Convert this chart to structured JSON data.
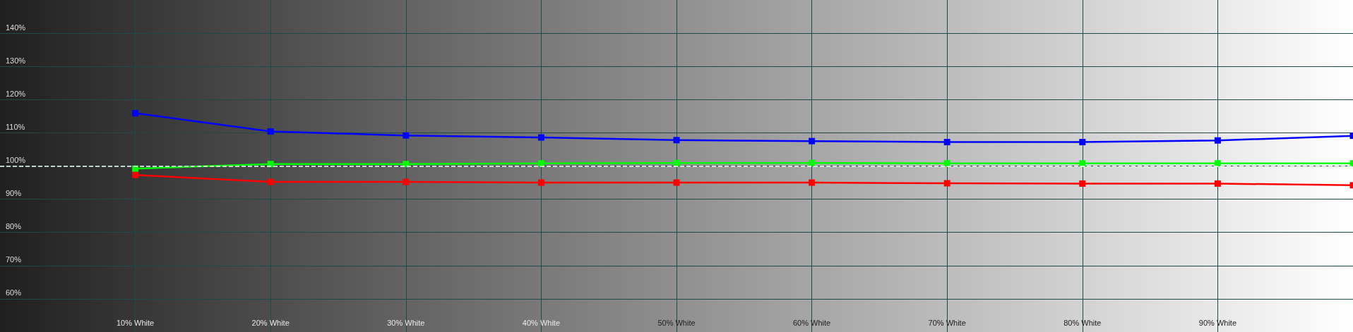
{
  "chart_data": {
    "type": "line",
    "x": [
      10,
      20,
      30,
      40,
      50,
      60,
      70,
      80,
      90,
      100
    ],
    "series": [
      {
        "color": "#0000ff",
        "values": [
          115.9,
          110.4,
          109.2,
          108.6,
          107.8,
          107.5,
          107.2,
          107.2,
          107.7,
          109.1
        ]
      },
      {
        "color": "#00ff00",
        "values": [
          99.2,
          100.6,
          100.6,
          100.8,
          100.9,
          100.9,
          100.8,
          100.8,
          100.8,
          100.8
        ]
      },
      {
        "color": "#ff0000",
        "values": [
          97.3,
          95.2,
          95.2,
          95.0,
          95.0,
          95.0,
          94.8,
          94.7,
          94.7,
          94.2
        ]
      }
    ],
    "xlim": [
      0,
      100
    ],
    "xticks": [
      {
        "value": 10,
        "label": "10% White"
      },
      {
        "value": 20,
        "label": "20% White"
      },
      {
        "value": 30,
        "label": "30% White"
      },
      {
        "value": 40,
        "label": "40% White"
      },
      {
        "value": 50,
        "label": "50% White"
      },
      {
        "value": 60,
        "label": "60% White"
      },
      {
        "value": 70,
        "label": "70% White"
      },
      {
        "value": 80,
        "label": "80% White"
      },
      {
        "value": 90,
        "label": "90% White"
      }
    ],
    "ylim": [
      50,
      150
    ],
    "yticks": [
      {
        "value": 60,
        "label": "60%"
      },
      {
        "value": 70,
        "label": "70%"
      },
      {
        "value": 80,
        "label": "80%"
      },
      {
        "value": 90,
        "label": "90%"
      },
      {
        "value": 100,
        "label": "100%"
      },
      {
        "value": 110,
        "label": "110%"
      },
      {
        "value": 120,
        "label": "120%"
      },
      {
        "value": 130,
        "label": "130%"
      },
      {
        "value": 140,
        "label": "140%"
      }
    ],
    "ref_lines": [
      {
        "axis": "y",
        "value": 100,
        "label": null,
        "color": "#ffffff",
        "line_style": "dashed"
      }
    ],
    "grid": true,
    "marker": "square",
    "line_style": "solid"
  }
}
